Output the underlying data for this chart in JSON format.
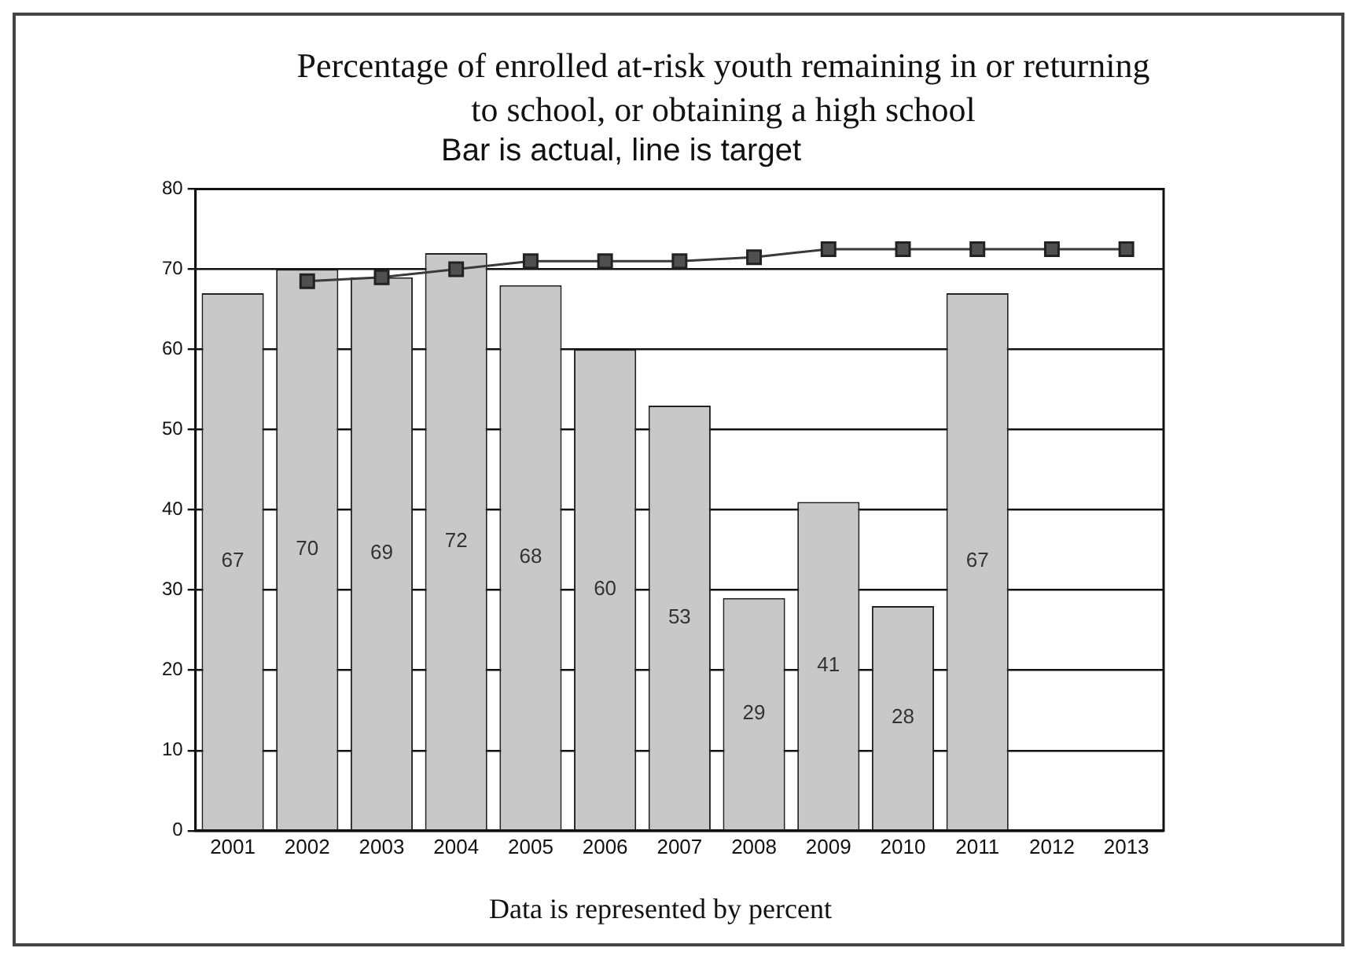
{
  "chart_data": {
    "type": "bar",
    "title": "Percentage of enrolled at-risk youth remaining in or returning to school, or obtaining a high school",
    "subtitle": "Bar is actual, line is target",
    "categories": [
      "2001",
      "2002",
      "2003",
      "2004",
      "2005",
      "2006",
      "2007",
      "2008",
      "2009",
      "2010",
      "2011",
      "2012",
      "2013"
    ],
    "series": [
      {
        "color": "#c8c8c8",
        "values": [
          67,
          70,
          69,
          72,
          68,
          60,
          53,
          29,
          41,
          28,
          67,
          null,
          null
        ],
        "value_labels": [
          "67",
          "70",
          "69",
          "72",
          "68",
          "60",
          "53",
          "29",
          "41",
          "28",
          "67",
          null,
          null
        ]
      },
      {
        "type": "line",
        "color": "#3a3a3a",
        "marker": "square",
        "line_style": "solid",
        "values": [
          null,
          68.5,
          69,
          70,
          71,
          71,
          71,
          71.5,
          72.5,
          72.5,
          72.5,
          72.5,
          72.5
        ]
      }
    ],
    "ylim": [
      0,
      80
    ],
    "yticks": [
      0,
      10,
      20,
      30,
      40,
      50,
      60,
      70,
      80
    ],
    "grid": "y",
    "legend": false,
    "annotations": [
      "Data is represented by percent"
    ]
  }
}
